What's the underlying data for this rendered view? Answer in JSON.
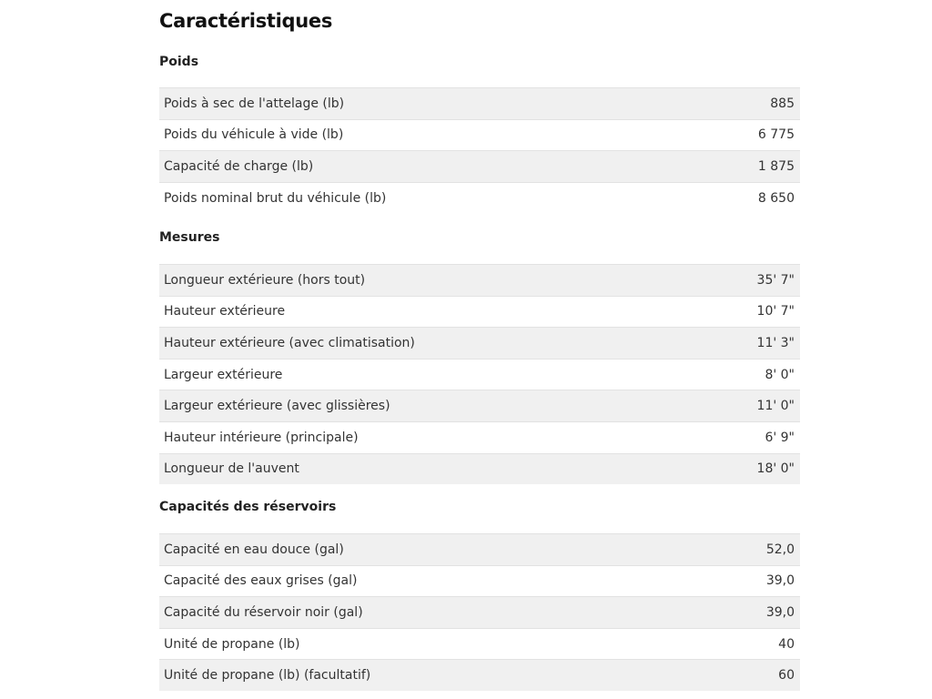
{
  "title": "Caractéristiques",
  "sections": [
    {
      "heading": "Poids",
      "rows": [
        {
          "label": "Poids à sec de l'attelage (lb)",
          "value": "885"
        },
        {
          "label": "Poids du véhicule à vide (lb)",
          "value": "6 775"
        },
        {
          "label": "Capacité de charge (lb)",
          "value": "1 875"
        },
        {
          "label": "Poids nominal brut du véhicule (lb)",
          "value": "8 650"
        }
      ]
    },
    {
      "heading": "Mesures",
      "rows": [
        {
          "label": "Longueur extérieure (hors tout)",
          "value": "35' 7\""
        },
        {
          "label": "Hauteur extérieure",
          "value": "10' 7\""
        },
        {
          "label": "Hauteur extérieure (avec climatisation)",
          "value": "11' 3\""
        },
        {
          "label": "Largeur extérieure",
          "value": "8' 0\""
        },
        {
          "label": "Largeur extérieure (avec glissières)",
          "value": "11' 0\""
        },
        {
          "label": "Hauteur intérieure (principale)",
          "value": "6' 9\""
        },
        {
          "label": "Longueur de l'auvent",
          "value": "18' 0\""
        }
      ]
    },
    {
      "heading": "Capacités des réservoirs",
      "rows": [
        {
          "label": "Capacité en eau douce (gal)",
          "value": "52,0"
        },
        {
          "label": "Capacité des eaux grises (gal)",
          "value": "39,0"
        },
        {
          "label": "Capacité du réservoir noir (gal)",
          "value": "39,0"
        },
        {
          "label": "Unité de propane (lb)",
          "value": "40"
        },
        {
          "label": "Unité de propane (lb) (facultatif)",
          "value": "60"
        }
      ]
    }
  ]
}
